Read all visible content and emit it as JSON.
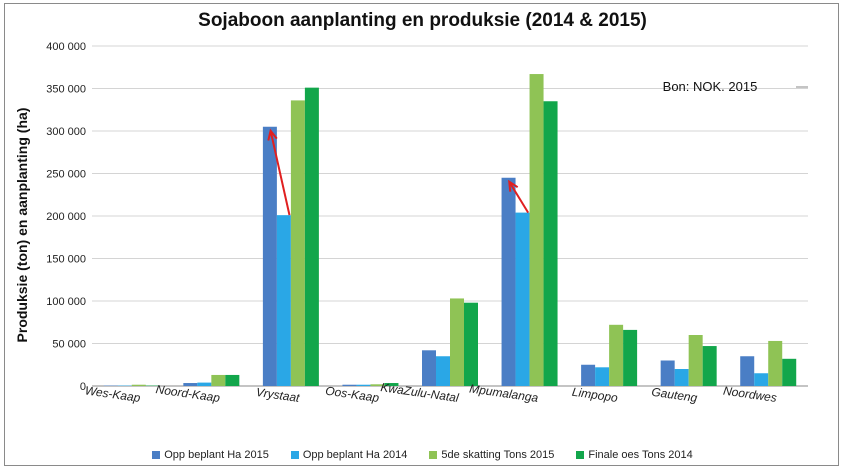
{
  "chart_data": {
    "type": "bar",
    "title": "Sojaboon aanplanting en produksie (2014 & 2015)",
    "xlabel": "",
    "ylabel": "Produksie (ton) en aanplanting (ha)",
    "source_note": "Bon: NOK. 2015",
    "ylim": [
      0,
      400000
    ],
    "yticks": [
      0,
      50000,
      100000,
      150000,
      200000,
      250000,
      300000,
      350000,
      400000
    ],
    "ytick_labels": [
      "0",
      "50 000",
      "100 000",
      "150 000",
      "200 000",
      "250 000",
      "300 000",
      "350 000",
      "400 000"
    ],
    "grid": true,
    "legend_position": "bottom",
    "categories": [
      "Wes-Kaap",
      "Noord-Kaap",
      "Vrystaat",
      "Oos-Kaap",
      "KwaZulu-Natal",
      "Mpumalanga",
      "Limpopo",
      "Gauteng",
      "Noordwes"
    ],
    "series": [
      {
        "name": "Opp beplant Ha 2015",
        "color": "#4a7ec5",
        "values": [
          500,
          3500,
          305000,
          1500,
          42000,
          245000,
          25000,
          30000,
          35000
        ]
      },
      {
        "name": "Opp beplant Ha 2014",
        "color": "#2aa7e6",
        "values": [
          500,
          4000,
          201000,
          1500,
          35000,
          204000,
          22000,
          20000,
          15000
        ]
      },
      {
        "name": "5de skatting Tons 2015",
        "color": "#8fc355",
        "values": [
          1500,
          13000,
          336000,
          2000,
          103000,
          367000,
          72000,
          60000,
          53000
        ]
      },
      {
        "name": "Finale oes Tons 2014",
        "color": "#12a64b",
        "values": [
          500,
          13000,
          351000,
          3500,
          98000,
          335000,
          66000,
          47000,
          32000
        ]
      }
    ],
    "annotation_arrow_color": "#e02020"
  }
}
